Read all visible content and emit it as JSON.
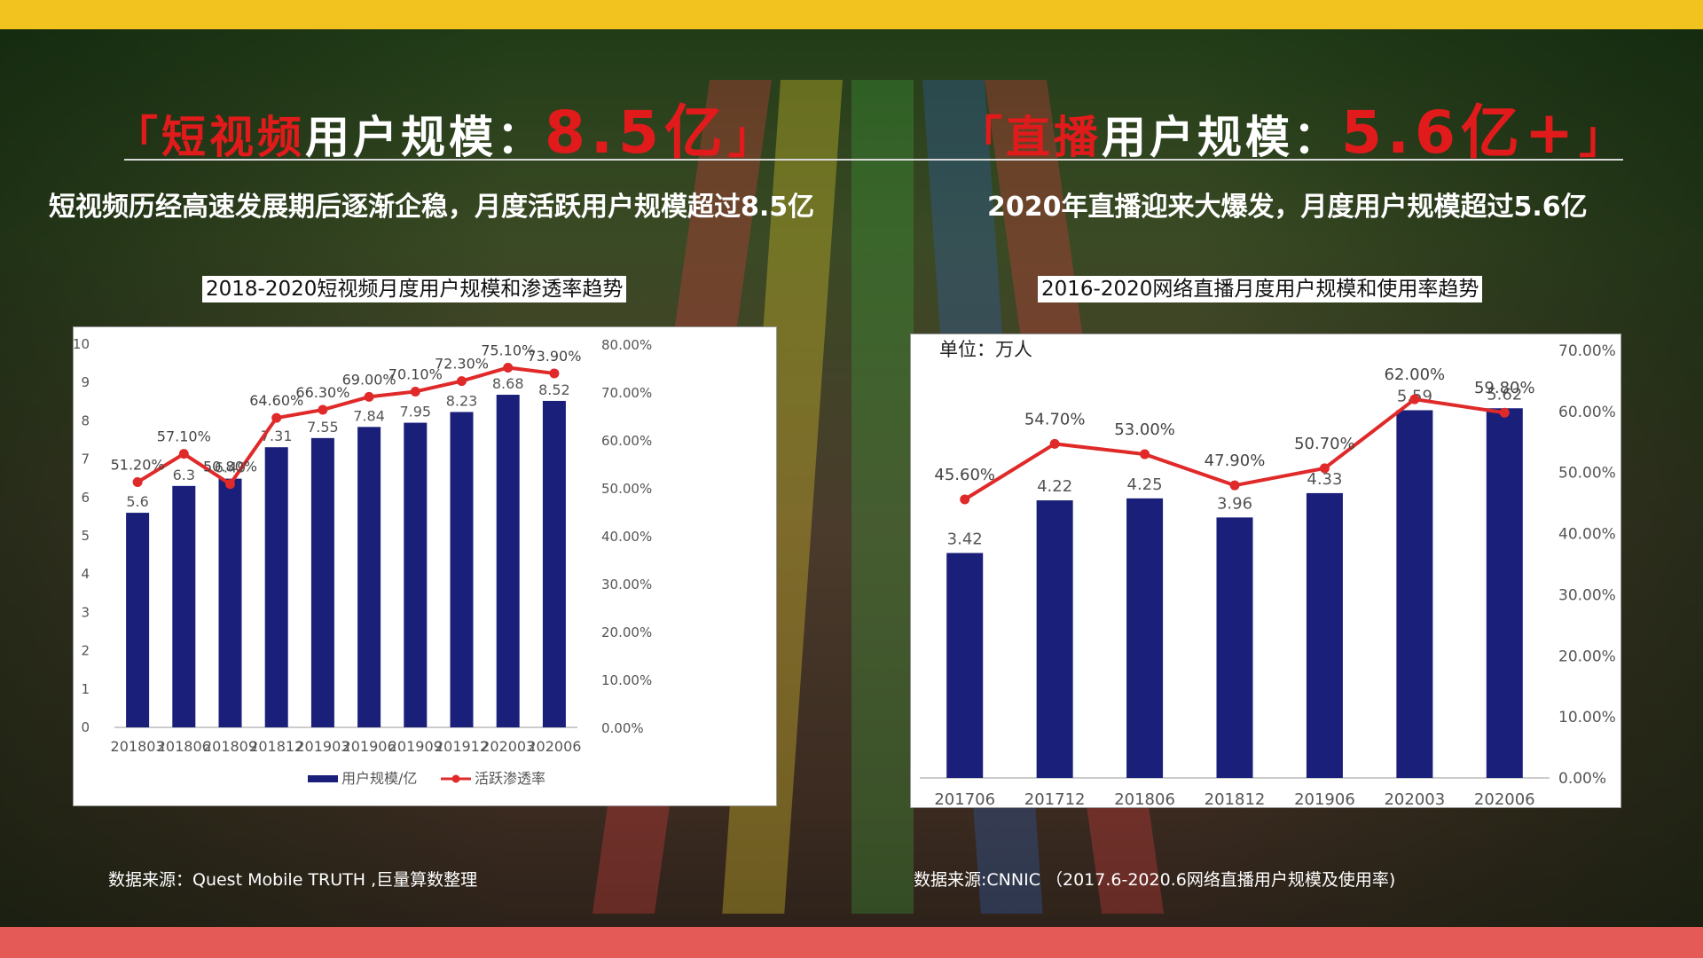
{
  "headlines": {
    "left": {
      "bracket_open": "「",
      "red_label": "短视频",
      "white_label": "用户规模：",
      "value": "8.5亿",
      "bracket_close": "」"
    },
    "right": {
      "bracket_open": "「",
      "red_label": "直播",
      "white_label": "用户规模：",
      "value": "5.6亿+",
      "bracket_close": "」"
    }
  },
  "subtitles": {
    "left": "短视频历经高速发展期后逐渐企稳，月度活跃用户规模超过8.5亿",
    "right": "2020年直播迎来大爆发，月度用户规模超过5.6亿"
  },
  "chart_titles": {
    "left": "2018-2020短视频月度用户规模和渗透率趋势",
    "right": "2016-2020网络直播月度用户规模和使用率趋势"
  },
  "sources": {
    "left": "数据来源：Quest Mobile TRUTH ,巨量算数整理",
    "right": "数据来源:CNNIC （2017.6-2020.6网络直播用户规模及使用率)"
  },
  "colors": {
    "bar": "#1a1f7a",
    "line": "#e02a2a",
    "top_bar": "#f2c31f",
    "bottom_bar": "#e35a57",
    "accent_red": "#e11b1b"
  },
  "chart_data": [
    {
      "type": "bar",
      "title": "2018-2020短视频月度用户规模和渗透率趋势",
      "categories": [
        "201803",
        "201806",
        "201809",
        "201812",
        "201903",
        "201906",
        "201909",
        "201912",
        "202003",
        "202006"
      ],
      "series": [
        {
          "name": "用户规模/亿",
          "type": "bar",
          "axis": "left",
          "values": [
            5.6,
            6.3,
            6.49,
            7.31,
            7.55,
            7.84,
            7.95,
            8.23,
            8.68,
            8.52
          ],
          "labels": [
            "5.6",
            "6.3",
            "6.49",
            "7.31",
            "7.55",
            "7.84",
            "7.95",
            "8.23",
            "8.68",
            "8.52"
          ]
        },
        {
          "name": "活跃渗透率",
          "type": "line",
          "axis": "right",
          "values": [
            51.2,
            57.1,
            50.8,
            64.6,
            66.3,
            69.0,
            70.1,
            72.3,
            75.1,
            73.9
          ],
          "labels": [
            "51.20%",
            "57.10%",
            "50.80%",
            "64.60%",
            "66.30%",
            "69.00%",
            "70.10%",
            "72.30%",
            "75.10%",
            "73.90%"
          ]
        }
      ],
      "y_left": {
        "min": 0,
        "max": 10,
        "ticks": [
          "0",
          "1",
          "2",
          "3",
          "4",
          "5",
          "6",
          "7",
          "8",
          "9",
          "10"
        ]
      },
      "y_right": {
        "min": 0,
        "max": 80,
        "ticks": [
          "0.00%",
          "10.00%",
          "20.00%",
          "30.00%",
          "40.00%",
          "50.00%",
          "60.00%",
          "70.00%",
          "80.00%"
        ]
      },
      "legend": {
        "position": "bottom",
        "items": [
          "用户规模/亿",
          "活跃渗透率"
        ]
      },
      "grid": false
    },
    {
      "type": "bar",
      "title": "2016-2020网络直播月度用户规模和使用率趋势",
      "unit_label": "单位：万人",
      "categories": [
        "201706",
        "201712",
        "201806",
        "201812",
        "201906",
        "202003",
        "202006"
      ],
      "series": [
        {
          "name": "用户规模",
          "type": "bar",
          "axis": "left",
          "values": [
            3.42,
            4.22,
            4.25,
            3.96,
            4.33,
            5.59,
            5.62
          ],
          "labels": [
            "3.42",
            "4.22",
            "4.25",
            "3.96",
            "4.33",
            "5.59",
            "5.62"
          ]
        },
        {
          "name": "使用率",
          "type": "line",
          "axis": "right",
          "values": [
            45.6,
            54.7,
            53.0,
            47.9,
            50.7,
            62.0,
            59.8
          ],
          "labels": [
            "45.60%",
            "54.70%",
            "53.00%",
            "47.90%",
            "50.70%",
            "62.00%",
            "59.80%"
          ]
        }
      ],
      "y_left": {
        "min": 0,
        "max": 6.5
      },
      "y_right": {
        "min": 0,
        "max": 70,
        "ticks": [
          "0.00%",
          "10.00%",
          "20.00%",
          "30.00%",
          "40.00%",
          "50.00%",
          "60.00%",
          "70.00%"
        ]
      },
      "legend": null,
      "grid": false
    }
  ]
}
